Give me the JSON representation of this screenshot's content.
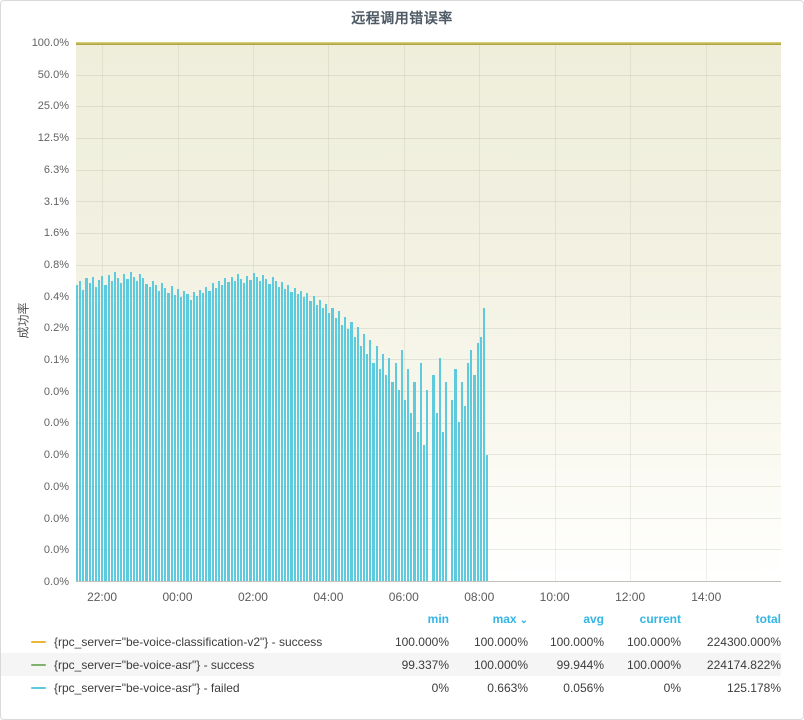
{
  "panel": {
    "title": "远程调用错误率"
  },
  "colors": {
    "success_v2": "#EAB839",
    "success_asr": "#7EB26D",
    "failed": "#5ECADD",
    "topline": "#ADA63F",
    "legend_header": "#33B5E5",
    "plot_bg_top": "#EFEEDB",
    "plot_bg_bottom": "#FFFFFF"
  },
  "y_axis": {
    "label": "成功率",
    "ticks": [
      "100.0%",
      "50.0%",
      "25.0%",
      "12.5%",
      "6.3%",
      "3.1%",
      "1.6%",
      "0.8%",
      "0.4%",
      "0.2%",
      "0.1%",
      "0.0%",
      "0.0%",
      "0.0%",
      "0.0%",
      "0.0%",
      "0.0%",
      "0.0%"
    ],
    "scale": "log2",
    "top_value_pct": 100,
    "halvings_total": 17
  },
  "x_axis": {
    "ticks": [
      "22:00",
      "00:00",
      "02:00",
      "04:00",
      "06:00",
      "08:00",
      "10:00",
      "12:00",
      "14:00"
    ],
    "positions_pct": [
      3.7,
      14.4,
      25.1,
      35.8,
      46.5,
      57.2,
      67.9,
      78.6,
      89.4
    ]
  },
  "legend": {
    "columns": [
      "min",
      "max",
      "avg",
      "current",
      "total"
    ],
    "sort_column": "max",
    "sort_indicator": "⌄",
    "rows": [
      {
        "label": "{rpc_server=\"be-voice-classification-v2\"} - success",
        "color": "#EAB839",
        "min": "100.000%",
        "max": "100.000%",
        "avg": "100.000%",
        "current": "100.000%",
        "total": "224300.000%"
      },
      {
        "label": "{rpc_server=\"be-voice-asr\"} - success",
        "color": "#7EB26D",
        "min": "99.337%",
        "max": "100.000%",
        "avg": "99.944%",
        "current": "100.000%",
        "total": "224174.822%"
      },
      {
        "label": "{rpc_server=\"be-voice-asr\"} - failed",
        "color": "#5ECADD",
        "min": "0%",
        "max": "0.663%",
        "avg": "0.056%",
        "current": "0%",
        "total": "125.178%"
      }
    ]
  },
  "chart_data": {
    "type": "bar",
    "title": "远程调用错误率",
    "ylabel": "成功率",
    "y_scale": "log2",
    "y_top_pct": 100,
    "y_bottom_pct": 0.000763,
    "x_range_visible": [
      "21:10",
      "15:45"
    ],
    "bar_interval_minutes": 5,
    "bars_start": "21:10",
    "bars_end": "08:05",
    "bars_span_fraction_of_plot": 0.586,
    "series": [
      {
        "name": "{rpc_server=\"be-voice-classification-v2\"} - success",
        "color": "#EAB839",
        "style": "line",
        "constant_value_pct": 100
      },
      {
        "name": "{rpc_server=\"be-voice-asr\"} - success",
        "color": "#7EB26D",
        "style": "line",
        "constant_value_pct": 100
      },
      {
        "name": "{rpc_server=\"be-voice-asr\"} - failed",
        "color": "#5ECADD",
        "style": "bars",
        "values_pct": [
          0.5,
          0.55,
          0.45,
          0.58,
          0.52,
          0.6,
          0.48,
          0.56,
          0.61,
          0.5,
          0.62,
          0.55,
          0.66,
          0.58,
          0.52,
          0.63,
          0.57,
          0.66,
          0.6,
          0.54,
          0.64,
          0.58,
          0.51,
          0.48,
          0.55,
          0.5,
          0.44,
          0.52,
          0.47,
          0.42,
          0.49,
          0.4,
          0.46,
          0.38,
          0.44,
          0.41,
          0.36,
          0.43,
          0.39,
          0.45,
          0.42,
          0.48,
          0.44,
          0.52,
          0.47,
          0.55,
          0.5,
          0.58,
          0.53,
          0.6,
          0.55,
          0.63,
          0.57,
          0.52,
          0.61,
          0.56,
          0.65,
          0.59,
          0.54,
          0.62,
          0.57,
          0.51,
          0.6,
          0.55,
          0.48,
          0.53,
          0.46,
          0.5,
          0.43,
          0.47,
          0.41,
          0.44,
          0.38,
          0.42,
          0.35,
          0.39,
          0.32,
          0.36,
          0.3,
          0.33,
          0.27,
          0.3,
          0.24,
          0.28,
          0.21,
          0.25,
          0.19,
          0.22,
          0.16,
          0.2,
          0.13,
          0.17,
          0.11,
          0.15,
          0.09,
          0.13,
          0.08,
          0.11,
          0.07,
          0.1,
          0.06,
          0.09,
          0.05,
          0.12,
          0.04,
          0.08,
          0.03,
          0.06,
          0.02,
          0.09,
          0.015,
          0.05,
          0,
          0.07,
          0.03,
          0.1,
          0.02,
          0.06,
          0,
          0.04,
          0.08,
          0.025,
          0.06,
          0.035,
          0.09,
          0.12,
          0.07,
          0.14,
          0.16,
          0.3,
          0.012
        ]
      }
    ]
  }
}
